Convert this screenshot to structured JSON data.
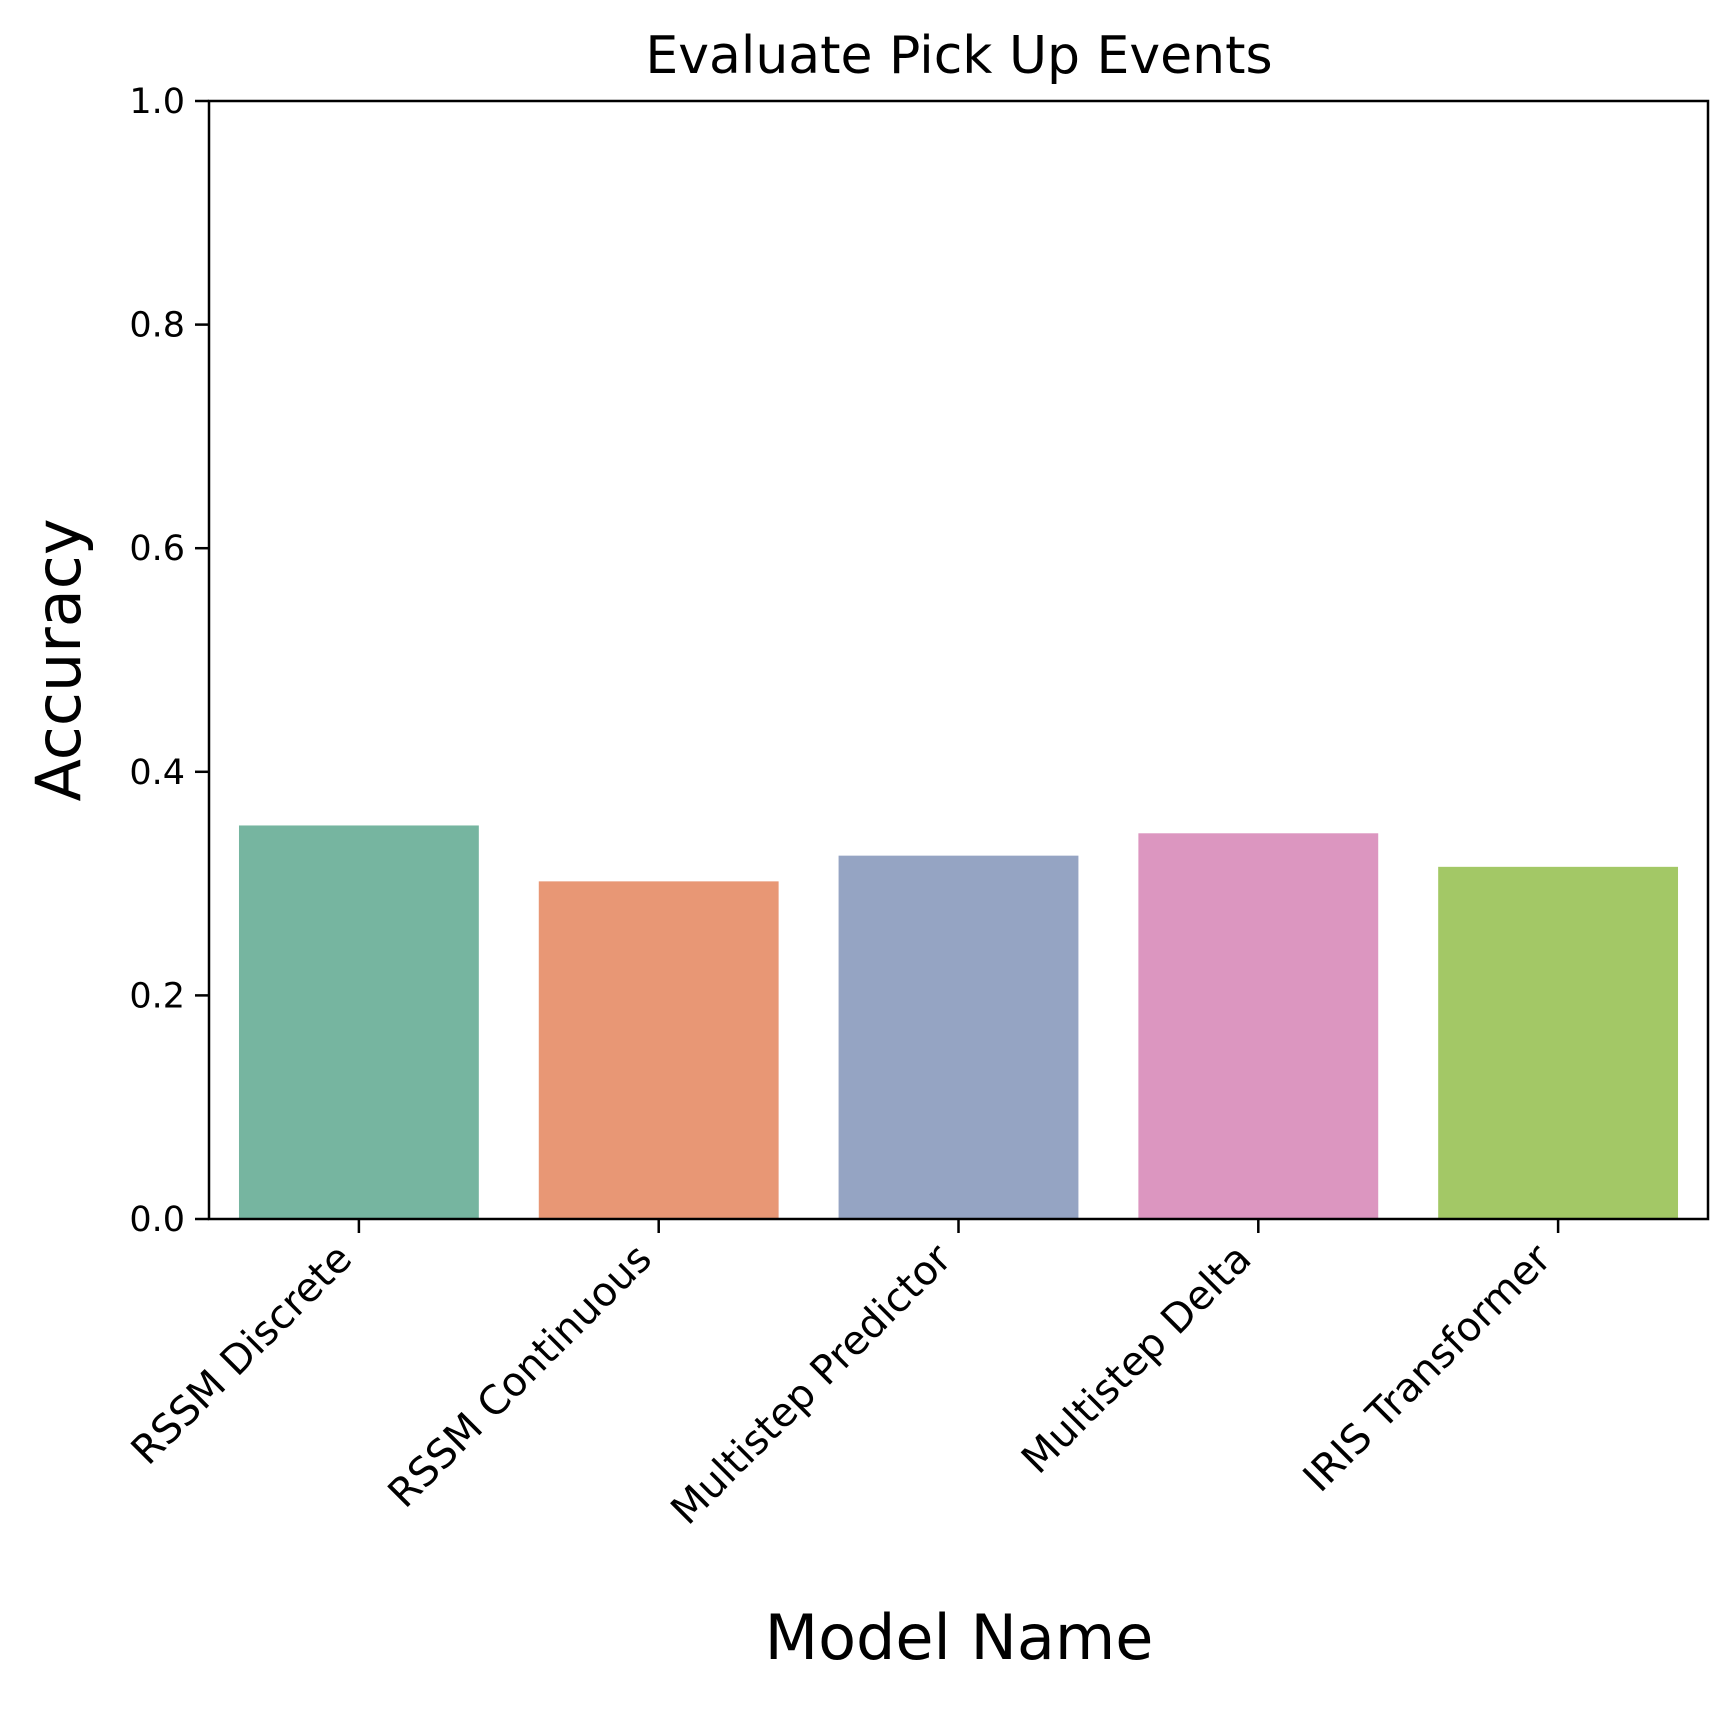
{
  "chart_data": {
    "type": "bar",
    "title": "Evaluate Pick Up Events",
    "xlabel": "Model Name",
    "ylabel": "Accuracy",
    "ylim": [
      0,
      1.0
    ],
    "yticks": [
      "0.0",
      "0.2",
      "0.4",
      "0.6",
      "0.8",
      "1.0"
    ],
    "categories": [
      "RSSM Discrete",
      "RSSM Continuous",
      "Multistep Predictor",
      "Multistep Delta",
      "IRIS Transformer"
    ],
    "values": [
      0.352,
      0.302,
      0.325,
      0.345,
      0.315
    ],
    "colors": [
      "#76b5a0",
      "#e89775",
      "#95a4c3",
      "#dc96c0",
      "#a3c866"
    ],
    "grid": false,
    "legend": "none"
  }
}
